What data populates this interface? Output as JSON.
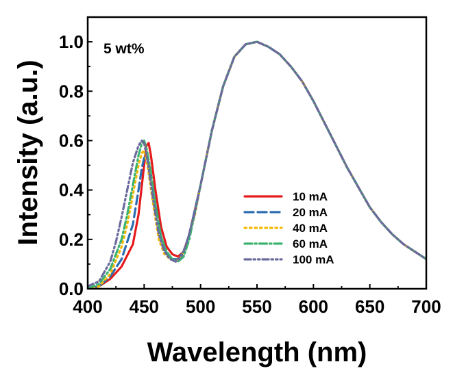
{
  "chart_data": {
    "type": "line",
    "title": "",
    "xlabel": "Wavelength (nm)",
    "ylabel": "Intensity (a.u.)",
    "xlim": [
      400,
      700
    ],
    "ylim": [
      0.0,
      1.1
    ],
    "xticks": [
      400,
      450,
      500,
      550,
      600,
      650,
      700
    ],
    "xtick_labels": [
      "400",
      "450",
      "500",
      "550",
      "600",
      "650",
      "700"
    ],
    "yticks": [
      0.0,
      0.2,
      0.4,
      0.6,
      0.8,
      1.0
    ],
    "ytick_labels": [
      "0.0",
      "0.2",
      "0.4",
      "0.6",
      "0.8",
      "1.0"
    ],
    "grid": false,
    "legend_position": "lower-right",
    "annotation": "5 wt%",
    "series": [
      {
        "name": "10 mA",
        "color": "#e41a1c",
        "dash": "solid",
        "x": [
          400,
          410,
          420,
          430,
          440,
          445,
          450,
          452,
          454,
          456,
          460,
          465,
          470,
          475,
          480,
          485,
          490,
          500,
          510,
          520,
          530,
          540,
          550,
          560,
          570,
          580,
          590,
          600,
          610,
          620,
          630,
          640,
          650,
          660,
          670,
          680,
          690,
          700
        ],
        "y": [
          0.0,
          0.01,
          0.04,
          0.09,
          0.18,
          0.3,
          0.5,
          0.58,
          0.59,
          0.54,
          0.4,
          0.25,
          0.17,
          0.14,
          0.13,
          0.15,
          0.22,
          0.42,
          0.64,
          0.82,
          0.94,
          0.99,
          1.0,
          0.98,
          0.95,
          0.9,
          0.84,
          0.76,
          0.67,
          0.58,
          0.49,
          0.41,
          0.33,
          0.27,
          0.22,
          0.18,
          0.15,
          0.12
        ]
      },
      {
        "name": "20 mA",
        "color": "#2b6cb0",
        "dash": "long-dash",
        "x": [
          400,
          410,
          420,
          430,
          440,
          445,
          448,
          450,
          452,
          455,
          460,
          465,
          470,
          475,
          480,
          485,
          490,
          500,
          510,
          520,
          530,
          540,
          550,
          560,
          570,
          580,
          590,
          600,
          610,
          620,
          630,
          640,
          650,
          660,
          670,
          680,
          690,
          700
        ],
        "y": [
          0.0,
          0.01,
          0.05,
          0.12,
          0.26,
          0.4,
          0.49,
          0.53,
          0.54,
          0.49,
          0.34,
          0.21,
          0.14,
          0.12,
          0.12,
          0.15,
          0.22,
          0.42,
          0.64,
          0.82,
          0.94,
          0.99,
          1.0,
          0.98,
          0.95,
          0.9,
          0.84,
          0.76,
          0.67,
          0.58,
          0.49,
          0.41,
          0.33,
          0.27,
          0.22,
          0.18,
          0.15,
          0.12
        ]
      },
      {
        "name": "40 mA",
        "color": "#f5b800",
        "dash": "dotted",
        "x": [
          400,
          410,
          420,
          430,
          435,
          440,
          445,
          448,
          450,
          453,
          458,
          463,
          468,
          473,
          478,
          483,
          488,
          495,
          500,
          510,
          520,
          530,
          540,
          550,
          560,
          570,
          580,
          590,
          600,
          610,
          620,
          630,
          640,
          650,
          660,
          670,
          680,
          690,
          700
        ],
        "y": [
          0.0,
          0.01,
          0.06,
          0.17,
          0.26,
          0.38,
          0.5,
          0.55,
          0.56,
          0.5,
          0.34,
          0.2,
          0.14,
          0.12,
          0.11,
          0.13,
          0.18,
          0.3,
          0.42,
          0.64,
          0.82,
          0.94,
          0.99,
          1.0,
          0.98,
          0.95,
          0.9,
          0.84,
          0.76,
          0.67,
          0.58,
          0.49,
          0.41,
          0.33,
          0.27,
          0.22,
          0.18,
          0.15,
          0.12
        ]
      },
      {
        "name": "60 mA",
        "color": "#3cb371",
        "dash": "dash-dot",
        "x": [
          400,
          410,
          420,
          430,
          435,
          440,
          445,
          448,
          450,
          452,
          455,
          460,
          465,
          470,
          475,
          480,
          485,
          490,
          500,
          510,
          520,
          530,
          540,
          550,
          560,
          570,
          580,
          590,
          600,
          610,
          620,
          630,
          640,
          650,
          660,
          670,
          680,
          690,
          700
        ],
        "y": [
          0.0,
          0.02,
          0.08,
          0.2,
          0.3,
          0.42,
          0.54,
          0.59,
          0.6,
          0.57,
          0.5,
          0.34,
          0.21,
          0.15,
          0.12,
          0.11,
          0.13,
          0.2,
          0.42,
          0.64,
          0.82,
          0.94,
          0.99,
          1.0,
          0.98,
          0.95,
          0.9,
          0.84,
          0.76,
          0.67,
          0.58,
          0.49,
          0.41,
          0.33,
          0.27,
          0.22,
          0.18,
          0.15,
          0.12
        ]
      },
      {
        "name": "100 mA",
        "color": "#6a6a9c",
        "dash": "dash-dot-dot",
        "x": [
          400,
          410,
          420,
          425,
          430,
          435,
          440,
          445,
          448,
          450,
          453,
          458,
          463,
          468,
          473,
          478,
          483,
          488,
          495,
          500,
          510,
          520,
          530,
          540,
          550,
          560,
          570,
          580,
          590,
          600,
          610,
          620,
          630,
          640,
          650,
          660,
          670,
          680,
          690,
          700
        ],
        "y": [
          0.01,
          0.03,
          0.11,
          0.19,
          0.29,
          0.4,
          0.51,
          0.58,
          0.6,
          0.59,
          0.52,
          0.36,
          0.22,
          0.15,
          0.12,
          0.11,
          0.13,
          0.19,
          0.31,
          0.42,
          0.64,
          0.82,
          0.94,
          0.99,
          1.0,
          0.98,
          0.95,
          0.9,
          0.84,
          0.76,
          0.67,
          0.58,
          0.49,
          0.41,
          0.33,
          0.27,
          0.22,
          0.18,
          0.15,
          0.12
        ]
      }
    ]
  }
}
